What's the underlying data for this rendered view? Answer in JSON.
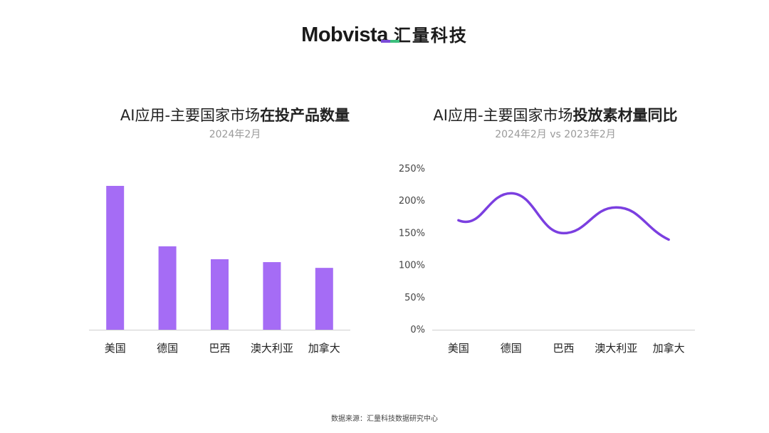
{
  "logo": {
    "brand_en": "Mobvista",
    "brand_cn": "汇量科技",
    "accent_colors": [
      "#7a4bd8",
      "#3cbf7d"
    ]
  },
  "footer": "数据来源：汇量科技数据研究中心",
  "colors": {
    "bar": "#a56cf5",
    "line": "#7b3fe0",
    "axis": "#cfcfcf"
  },
  "chart_data": [
    {
      "type": "bar",
      "title_normal": "AI应用-主要国家市场",
      "title_bold": "在投产品数量",
      "subtitle": "2024年2月",
      "categories": [
        "美国",
        "德国",
        "巴西",
        "澳大利亚",
        "加拿大"
      ],
      "values": [
        100,
        58,
        49,
        47,
        43
      ],
      "ylim": [
        0,
        100
      ],
      "grid": false
    },
    {
      "type": "line",
      "title_normal": "AI应用-主要国家市场",
      "title_bold": "投放素材量同比",
      "subtitle": "2024年2月  vs 2023年2月",
      "categories": [
        "美国",
        "德国",
        "巴西",
        "澳大利亚",
        "加拿大"
      ],
      "values": [
        170,
        212,
        150,
        190,
        140
      ],
      "ylim": [
        0,
        250
      ],
      "yticks": [
        "0%",
        "50%",
        "100%",
        "150%",
        "200%",
        "250%"
      ],
      "smooth": true,
      "grid": false
    }
  ]
}
